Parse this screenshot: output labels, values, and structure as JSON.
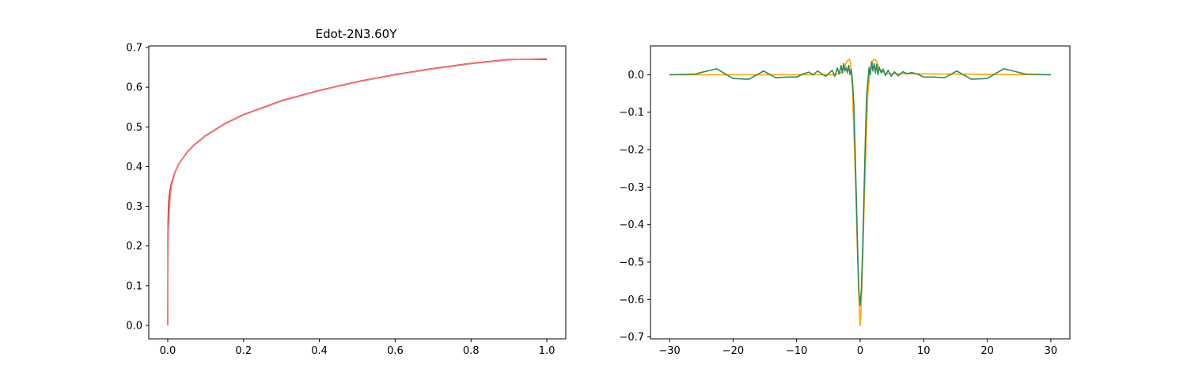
{
  "chart_data": [
    {
      "type": "line",
      "title": "Edot-2N3.60Y",
      "xlabel": "",
      "ylabel": "",
      "xlim": [
        -0.05,
        1.05
      ],
      "ylim": [
        -0.034,
        0.704
      ],
      "xticks": [
        0.0,
        0.2,
        0.4,
        0.6,
        0.8,
        1.0
      ],
      "xtick_labels": [
        "0.0",
        "0.2",
        "0.4",
        "0.6",
        "0.8",
        "1.0"
      ],
      "yticks": [
        0.0,
        0.1,
        0.2,
        0.3,
        0.4,
        0.5,
        0.6,
        0.7
      ],
      "ytick_labels": [
        "0.0",
        "0.1",
        "0.2",
        "0.3",
        "0.4",
        "0.5",
        "0.6",
        "0.7"
      ],
      "grid": false,
      "series": [
        {
          "color": "#e8191b",
          "x": [
            0,
            0.0005,
            0.001,
            0.002,
            0.004,
            0.006,
            0.008,
            0.01,
            0.02,
            0.03,
            0.05,
            0.07,
            0.1,
            0.15,
            0.2,
            0.3,
            0.4,
            0.5,
            0.6,
            0.7,
            0.8,
            0.9,
            1.0
          ],
          "y": [
            0,
            0.2,
            0.26,
            0.3,
            0.325,
            0.34,
            0.35,
            0.358,
            0.388,
            0.408,
            0.435,
            0.455,
            0.478,
            0.508,
            0.531,
            0.566,
            0.592,
            0.614,
            0.632,
            0.647,
            0.66,
            0.67,
            0.67
          ]
        },
        {
          "color": "#f08080",
          "x": [
            0,
            0.001,
            0.002,
            0.004,
            0.006,
            0.008,
            0.01,
            0.02,
            0.03,
            0.05,
            0.07,
            0.1,
            0.15,
            0.2,
            0.3,
            0.4,
            0.5,
            0.6,
            0.7,
            0.8,
            0.9,
            1.0
          ],
          "y": [
            0,
            0.18,
            0.24,
            0.29,
            0.318,
            0.338,
            0.352,
            0.386,
            0.407,
            0.434,
            0.454,
            0.477,
            0.507,
            0.53,
            0.565,
            0.591,
            0.613,
            0.631,
            0.646,
            0.659,
            0.669,
            0.672
          ]
        }
      ]
    },
    {
      "type": "line",
      "title": "",
      "xlabel": "",
      "ylabel": "",
      "xlim": [
        -33,
        33
      ],
      "ylim": [
        -0.705,
        0.077
      ],
      "xticks": [
        -30,
        -20,
        -10,
        0,
        10,
        20,
        30
      ],
      "xtick_labels": [
        "−30",
        "−20",
        "−10",
        "0",
        "10",
        "20",
        "30"
      ],
      "yticks": [
        0.0,
        -0.1,
        -0.2,
        -0.3,
        -0.4,
        -0.5,
        -0.6,
        -0.7
      ],
      "ytick_labels": [
        "0.0",
        "−0.1",
        "−0.2",
        "−0.3",
        "−0.4",
        "−0.5",
        "−0.6",
        "−0.7"
      ],
      "grid": false,
      "series": [
        {
          "color": "#ffa500",
          "x": [
            -30,
            -4,
            -3,
            -2.5,
            -2,
            -1.7,
            -1.5,
            -1.2,
            -1,
            -0.7,
            -0.5,
            -0.3,
            -0.1,
            0,
            0.1,
            0.3,
            0.5,
            0.7,
            1,
            1.2,
            1.5,
            1.8,
            2,
            2.3,
            2.6,
            3,
            4,
            30
          ],
          "y": [
            0,
            0,
            0.005,
            0.02,
            0.038,
            0.042,
            0.03,
            -0.04,
            -0.15,
            -0.3,
            -0.43,
            -0.55,
            -0.64,
            -0.67,
            -0.64,
            -0.55,
            -0.43,
            -0.3,
            -0.15,
            -0.05,
            0.0,
            0.025,
            0.038,
            0.042,
            0.035,
            0.015,
            0.003,
            0
          ]
        },
        {
          "color": "#2e8b57",
          "x": [
            -30,
            -26,
            -22.6,
            -20,
            -17.5,
            -15.2,
            -13.3,
            -11.5,
            -10,
            -9,
            -8.1,
            -7.4,
            -6.7,
            -6,
            -5.4,
            -4.9,
            -4.4,
            -4,
            -3.6,
            -3.3,
            -3,
            -2.8,
            -2.6,
            -2.4,
            -2.2,
            -2,
            -1.8,
            -1.6,
            -1.4,
            -1.2,
            -1,
            -0.8,
            -0.6,
            -0.4,
            -0.2,
            0,
            0.2,
            0.4,
            0.6,
            0.8,
            1,
            1.2,
            1.4,
            1.6,
            1.8,
            2,
            2.2,
            2.4,
            2.6,
            2.8,
            3,
            3.3,
            3.6,
            4,
            4.4,
            4.9,
            5.4,
            6,
            6.7,
            7.4,
            8.1,
            9,
            10,
            11.5,
            13.3,
            15.2,
            17.5,
            20,
            22.6,
            26,
            30
          ],
          "y": [
            0,
            0.002,
            0.016,
            -0.01,
            -0.012,
            0.01,
            -0.008,
            -0.006,
            -0.006,
            0.002,
            0.007,
            0.0,
            0.01,
            0.002,
            -0.004,
            0.004,
            0.012,
            -0.004,
            0.018,
            0.002,
            0.025,
            0.005,
            0.03,
            0.01,
            0.02,
            0.005,
            0.025,
            0.0,
            0.015,
            -0.02,
            -0.08,
            -0.2,
            -0.33,
            -0.47,
            -0.58,
            -0.615,
            -0.57,
            -0.46,
            -0.32,
            -0.18,
            -0.06,
            -0.02,
            0.02,
            0.0,
            0.035,
            0.01,
            0.03,
            0.005,
            0.028,
            0.0,
            0.02,
            0.005,
            0.015,
            -0.002,
            0.012,
            -0.004,
            0.008,
            -0.003,
            0.008,
            0.003,
            0.006,
            0.002,
            -0.006,
            -0.006,
            -0.008,
            0.01,
            -0.012,
            -0.01,
            0.016,
            0.002,
            0
          ]
        }
      ]
    }
  ]
}
